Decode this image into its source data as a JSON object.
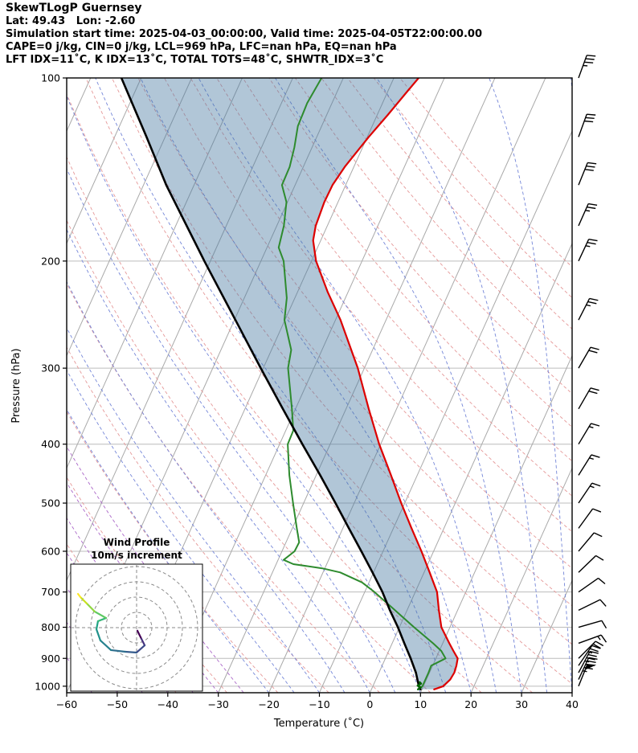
{
  "header": {
    "title": "SkewTLogP Guernsey",
    "location_line": "Lat: 49.43   Lon: -2.60",
    "time_line": "Simulation start time: 2025-04-03_00:00:00, Valid time: 2025-04-05T22:00:00.00",
    "indices_line1": "CAPE=0 j/kg, CIN=0 j/kg, LCL=969 hPa, LFC=nan hPa, EQ=nan hPa",
    "indices_line2": "LFT IDX=11˚C, K IDX=13˚C, TOTAL TOTS=48˚C, SHWTR_IDX=3˚C"
  },
  "chart_data": {
    "type": "line",
    "subtype": "skew-t_log-p_sounding",
    "xlabel": "Temperature (˚C)",
    "ylabel": "Pressure (hPa)",
    "xlim": [
      -60,
      40
    ],
    "x_ticks": [
      -60,
      -50,
      -40,
      -30,
      -20,
      -10,
      0,
      10,
      20,
      30,
      40
    ],
    "pressure_ticks": [
      100,
      200,
      300,
      400,
      500,
      600,
      700,
      800,
      900,
      1000
    ],
    "p_top": 100,
    "p_bottom": 1025,
    "skew_slope": 0.45,
    "isotherm_step_c": 10,
    "dry_adiabat_step_c": 10,
    "moist_adiabat_step_c": 5,
    "grid_colors": {
      "isobar": "#bcbcbc",
      "isotherm": "#a9a9a9",
      "dry_adiabat": "#e59898",
      "moist_adiabat": "#7486d8",
      "cold_moist_adiabat": "#aa66c8",
      "frame": "#000000"
    },
    "series": [
      {
        "name": "temperature",
        "color": "#dd0000",
        "width": 2.2,
        "points_p_t": [
          [
            1012,
            12.4
          ],
          [
            1000,
            13.9
          ],
          [
            975,
            14.7
          ],
          [
            950,
            14.9
          ],
          [
            925,
            14.7
          ],
          [
            900,
            14.3
          ],
          [
            875,
            12.8
          ],
          [
            850,
            11.3
          ],
          [
            800,
            8.3
          ],
          [
            750,
            6.3
          ],
          [
            700,
            4.3
          ],
          [
            650,
            1.1
          ],
          [
            600,
            -2.4
          ],
          [
            550,
            -6.4
          ],
          [
            500,
            -10.7
          ],
          [
            450,
            -15.2
          ],
          [
            400,
            -20.3
          ],
          [
            350,
            -25.5
          ],
          [
            300,
            -31.3
          ],
          [
            250,
            -39.0
          ],
          [
            225,
            -44.0
          ],
          [
            200,
            -49.1
          ],
          [
            185,
            -51.5
          ],
          [
            175,
            -52.3
          ],
          [
            160,
            -52.7
          ],
          [
            150,
            -52.6
          ],
          [
            140,
            -51.8
          ],
          [
            125,
            -49.7
          ],
          [
            115,
            -47.9
          ],
          [
            105,
            -46.1
          ],
          [
            100,
            -45.1
          ]
        ]
      },
      {
        "name": "dewpoint",
        "color": "#2e8b2e",
        "width": 2.0,
        "points_p_t": [
          [
            1008,
            9.4
          ],
          [
            1000,
            9.8
          ],
          [
            950,
            9.8
          ],
          [
            925,
            9.7
          ],
          [
            900,
            11.9
          ],
          [
            875,
            10.4
          ],
          [
            850,
            8.1
          ],
          [
            800,
            2.9
          ],
          [
            750,
            -2.4
          ],
          [
            700,
            -8.1
          ],
          [
            675,
            -11.4
          ],
          [
            650,
            -16.6
          ],
          [
            640,
            -20.5
          ],
          [
            630,
            -26.6
          ],
          [
            620,
            -28.9
          ],
          [
            600,
            -27.5
          ],
          [
            580,
            -27.4
          ],
          [
            550,
            -29.1
          ],
          [
            500,
            -32.1
          ],
          [
            450,
            -35.3
          ],
          [
            400,
            -38.4
          ],
          [
            380,
            -38.5
          ],
          [
            350,
            -40.7
          ],
          [
            300,
            -45.1
          ],
          [
            280,
            -46.1
          ],
          [
            250,
            -50.1
          ],
          [
            230,
            -51.6
          ],
          [
            200,
            -55.5
          ],
          [
            190,
            -57.7
          ],
          [
            175,
            -58.6
          ],
          [
            160,
            -60.2
          ],
          [
            150,
            -62.6
          ],
          [
            140,
            -62.7
          ],
          [
            130,
            -63.5
          ],
          [
            120,
            -64.7
          ],
          [
            110,
            -64.9
          ],
          [
            100,
            -64.3
          ]
        ]
      },
      {
        "name": "parcel_path",
        "color": "#000000",
        "width": 2.6,
        "points_p_t": [
          [
            1012,
            9.7
          ],
          [
            1000,
            9.1
          ],
          [
            950,
            7.3
          ],
          [
            900,
            5.0
          ],
          [
            850,
            2.4
          ],
          [
            800,
            -0.3
          ],
          [
            750,
            -3.4
          ],
          [
            700,
            -6.5
          ],
          [
            650,
            -10.2
          ],
          [
            600,
            -14.3
          ],
          [
            550,
            -18.8
          ],
          [
            500,
            -23.7
          ],
          [
            450,
            -29.2
          ],
          [
            400,
            -35.5
          ],
          [
            350,
            -42.5
          ],
          [
            300,
            -50.5
          ],
          [
            250,
            -59.8
          ],
          [
            200,
            -71.2
          ],
          [
            150,
            -85.5
          ],
          [
            125,
            -93.7
          ],
          [
            100,
            -103.9
          ]
        ]
      },
      {
        "name": "surface_wetbulb",
        "color": "#006400",
        "width": 2.4,
        "points_p_t": [
          [
            1012,
            9.2
          ],
          [
            1005,
            9.6
          ],
          [
            998,
            8.8
          ],
          [
            990,
            9.3
          ],
          [
            985,
            8.9
          ]
        ]
      }
    ],
    "shaded_region": {
      "between": [
        "parcel_path",
        "temperature"
      ],
      "color": "#4678a0",
      "opacity": 0.42
    },
    "wind_barbs_p_dir_kt": [
      [
        100,
        20,
        35
      ],
      [
        125,
        20,
        30
      ],
      [
        150,
        22,
        30
      ],
      [
        175,
        24,
        25
      ],
      [
        200,
        25,
        25
      ],
      [
        250,
        27,
        25
      ],
      [
        300,
        30,
        20
      ],
      [
        350,
        30,
        20
      ],
      [
        400,
        31,
        15
      ],
      [
        450,
        32,
        15
      ],
      [
        500,
        34,
        15
      ],
      [
        550,
        36,
        10
      ],
      [
        600,
        40,
        10
      ],
      [
        650,
        46,
        10
      ],
      [
        700,
        55,
        10
      ],
      [
        750,
        64,
        10
      ],
      [
        800,
        74,
        10
      ],
      [
        850,
        70,
        15
      ],
      [
        900,
        45,
        20
      ],
      [
        925,
        34,
        25
      ],
      [
        950,
        28,
        35
      ],
      [
        975,
        25,
        45
      ],
      [
        1000,
        22,
        50
      ]
    ]
  },
  "hodograph": {
    "title_line1": "Wind Profile",
    "title_line2": "10m/s increment",
    "ring_interval_ms": 10,
    "rings_shown": 4,
    "points_uv_ms": [
      [
        0.5,
        -2.0
      ],
      [
        3.2,
        -7.4
      ],
      [
        5.3,
        -11.6
      ],
      [
        0,
        -16.3
      ],
      [
        -7.4,
        -15.8
      ],
      [
        -16.8,
        -14.7
      ],
      [
        -23.7,
        -8.4
      ],
      [
        -26.3,
        -1.1
      ],
      [
        -25.3,
        4.2
      ],
      [
        -20,
        6.3
      ],
      [
        -27.4,
        10.5
      ],
      [
        -32.6,
        15.8
      ],
      [
        -36.8,
        20
      ],
      [
        -38.4,
        22.1
      ]
    ],
    "colormap": [
      "#440154",
      "#46327e",
      "#3e4a89",
      "#365c8d",
      "#2e6e8e",
      "#26818e",
      "#21918c",
      "#22a385",
      "#35b779",
      "#5ec962",
      "#90d743",
      "#c8e020",
      "#fde725"
    ]
  }
}
